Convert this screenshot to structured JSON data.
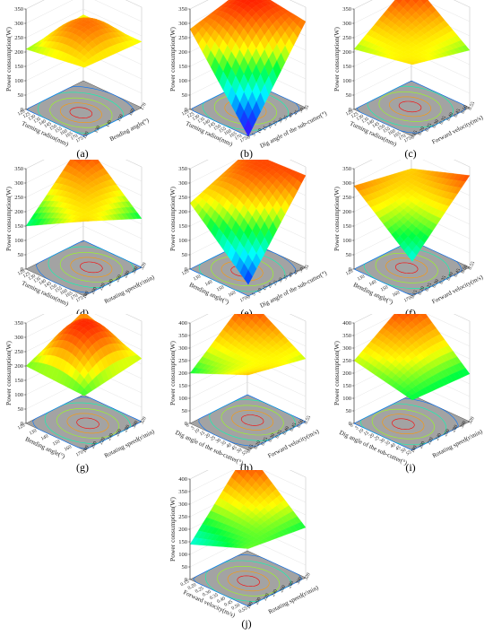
{
  "figure": {
    "type": "3d-response-surface-grid",
    "panel_count": 10
  },
  "colors": {
    "colormap": [
      "#4b00ff",
      "#0050ff",
      "#00ffff",
      "#00ff40",
      "#ffff00",
      "#ff8000",
      "#ff0000"
    ],
    "floor": "#a3a3a3",
    "ink": "#222222"
  },
  "chart_data": [
    {
      "type": "surface3d",
      "caption": "(a)",
      "zlabel": "Power consumption(W)",
      "zticks": [
        "0",
        "50",
        "100",
        "150",
        "200",
        "250",
        "300",
        "350"
      ],
      "zlim": [
        0,
        350
      ],
      "xlabel": "Turning radius(mm)",
      "xticks": [
        "120",
        "125",
        "130",
        "135",
        "140",
        "145",
        "150",
        "155",
        "160",
        "165",
        "170",
        "175"
      ],
      "ylabel": "Bending angle(°)",
      "yticks": [
        "120",
        "130",
        "140",
        "150",
        "160",
        "170"
      ],
      "corners": {
        "front": 240,
        "left": 210,
        "right": 230,
        "back": 230
      },
      "peak": 300
    },
    {
      "type": "surface3d",
      "caption": "(b)",
      "zlabel": "Power consumption(W)",
      "zticks": [
        "0",
        "50",
        "100",
        "150",
        "200",
        "250",
        "300",
        "350"
      ],
      "zlim": [
        0,
        350
      ],
      "xlabel": "Turning radius(mm)",
      "xticks": [
        "120",
        "125",
        "130",
        "135",
        "140",
        "145",
        "150",
        "155",
        "160",
        "165",
        "170",
        "175"
      ],
      "ylabel": "Dig angle of the sub-cutter(°)",
      "yticks": [
        "0",
        "5",
        "10",
        "15",
        "20",
        "25",
        "30",
        "35",
        "40",
        "45",
        "50",
        "55"
      ],
      "corners": {
        "front": 0,
        "left": 280,
        "right": 300,
        "back": 330
      },
      "peak": 300
    },
    {
      "type": "surface3d",
      "caption": "(c)",
      "zlabel": "Power consumption(W)",
      "zticks": [
        "0",
        "50",
        "100",
        "150",
        "200",
        "250",
        "300",
        "350"
      ],
      "zlim": [
        0,
        350
      ],
      "xlabel": "Turning radius(mm)",
      "xticks": [
        "120",
        "125",
        "130",
        "135",
        "140",
        "145",
        "150",
        "155",
        "160",
        "165",
        "170",
        "175"
      ],
      "ylabel": "Forward velocity(m/s)",
      "yticks": [
        "0.15",
        "0.20",
        "0.25",
        "0.30",
        "0.35",
        "0.40",
        "0.45",
        "0.50",
        "0.55"
      ],
      "corners": {
        "front": 250,
        "left": 210,
        "right": 200,
        "back": 350
      },
      "peak": 250
    },
    {
      "type": "surface3d",
      "caption": "(d)",
      "zlabel": "Power consumption(W)",
      "zticks": [
        "0",
        "50",
        "100",
        "150",
        "200",
        "250",
        "300",
        "350"
      ],
      "zlim": [
        0,
        350
      ],
      "xlabel": "Turning radius(mm)",
      "xticks": [
        "120",
        "125",
        "130",
        "135",
        "140",
        "145",
        "150",
        "155",
        "160",
        "165",
        "170",
        "175"
      ],
      "ylabel": "Rotating speed(r/min)",
      "yticks": [
        "180",
        "200",
        "220",
        "240",
        "260",
        "280",
        "300",
        "320"
      ],
      "corners": {
        "front": 260,
        "left": 150,
        "right": 170,
        "back": 350
      },
      "peak": 260
    },
    {
      "type": "surface3d",
      "caption": "(e)",
      "zlabel": "Power consumption(W)",
      "zticks": [
        "0",
        "50",
        "100",
        "150",
        "200",
        "250",
        "300",
        "350"
      ],
      "zlim": [
        0,
        350
      ],
      "xlabel": "Bending angle(°)",
      "xticks": [
        "120",
        "130",
        "140",
        "150",
        "160",
        "170"
      ],
      "ylabel": "Dig angle of the sub-cutter(°)",
      "yticks": [
        "0",
        "5",
        "10",
        "15",
        "20",
        "25",
        "30",
        "35",
        "40",
        "45",
        "50",
        "55"
      ],
      "corners": {
        "front": 40,
        "left": 230,
        "right": 320,
        "back": 310
      },
      "peak": 280
    },
    {
      "type": "surface3d",
      "caption": "(f)",
      "zlabel": "Power consumption(W)",
      "zticks": [
        "0",
        "50",
        "100",
        "150",
        "200",
        "250",
        "300",
        "350"
      ],
      "zlim": [
        0,
        350
      ],
      "xlabel": "Bending angle(°)",
      "xticks": [
        "120",
        "130",
        "140",
        "150",
        "160",
        "170"
      ],
      "ylabel": "Forward velocity(m/s)",
      "yticks": [
        "0.15",
        "0.20",
        "0.25",
        "0.30",
        "0.35",
        "0.40",
        "0.45",
        "0.50",
        "0.55"
      ],
      "corners": {
        "front": 120,
        "left": 290,
        "right": 320,
        "back": 250
      },
      "peak": 230
    },
    {
      "type": "surface3d",
      "caption": "(g)",
      "zlabel": "Power consumption(W)",
      "zticks": [
        "0",
        "50",
        "100",
        "150",
        "200",
        "250",
        "300",
        "350"
      ],
      "zlim": [
        0,
        350
      ],
      "xlabel": "Bending angle(°)",
      "xticks": [
        "120",
        "130",
        "140",
        "150",
        "160",
        "170"
      ],
      "ylabel": "Rotating speed(r/min)",
      "yticks": [
        "180",
        "200",
        "220",
        "240",
        "260",
        "280",
        "300",
        "320"
      ],
      "corners": {
        "front": 190,
        "left": 200,
        "right": 220,
        "back": 290
      },
      "peak": 330
    },
    {
      "type": "surface3d",
      "caption": "(h)",
      "zlabel": "Power consumption(W)",
      "zticks": [
        "0",
        "50",
        "100",
        "150",
        "200",
        "250",
        "300",
        "350",
        "400"
      ],
      "zlim": [
        0,
        400
      ],
      "xlabel": "Dig angle of the sub-cutter(°)",
      "xticks": [
        "0",
        "5",
        "10",
        "15",
        "20",
        "25",
        "30",
        "35",
        "40",
        "45",
        "50",
        "55"
      ],
      "ylabel": "Forward velocity(m/s)",
      "yticks": [
        "0.15",
        "0.20",
        "0.25",
        "0.30",
        "0.35",
        "0.40",
        "0.45",
        "0.50",
        "0.55"
      ],
      "corners": {
        "front": 300,
        "left": 200,
        "right": 250,
        "back": 390
      },
      "peak": 270
    },
    {
      "type": "surface3d",
      "caption": "(i)",
      "zlabel": "Power consumption(W)",
      "zticks": [
        "0",
        "50",
        "100",
        "150",
        "200",
        "250",
        "300",
        "350",
        "400"
      ],
      "zlim": [
        0,
        400
      ],
      "xlabel": "Dig angle of the sub-cutter(°)",
      "xticks": [
        "0",
        "5",
        "10",
        "15",
        "20",
        "25",
        "30",
        "35",
        "40",
        "45",
        "50",
        "55"
      ],
      "ylabel": "Rotating speed(r/min)",
      "yticks": [
        "180",
        "200",
        "220",
        "240",
        "260",
        "280",
        "300",
        "320"
      ],
      "corners": {
        "front": 200,
        "left": 250,
        "right": 190,
        "back": 400
      },
      "peak": 280
    },
    {
      "type": "surface3d",
      "caption": "(j)",
      "zlabel": "Power consumption(W)",
      "zticks": [
        "0",
        "50",
        "100",
        "150",
        "200",
        "250",
        "300",
        "350",
        "400"
      ],
      "zlim": [
        0,
        400
      ],
      "xlabel": "Forward velocity(m/s)",
      "xticks": [
        "0.15",
        "0.20",
        "0.25",
        "0.30",
        "0.35",
        "0.40",
        "0.45",
        "0.50",
        "0.55"
      ],
      "ylabel": "Rotating speed(r/min)",
      "yticks": [
        "180",
        "200",
        "220",
        "240",
        "260",
        "280",
        "300",
        "320"
      ],
      "corners": {
        "front": 230,
        "left": 140,
        "right": 200,
        "back": 400
      },
      "peak": 250
    }
  ]
}
